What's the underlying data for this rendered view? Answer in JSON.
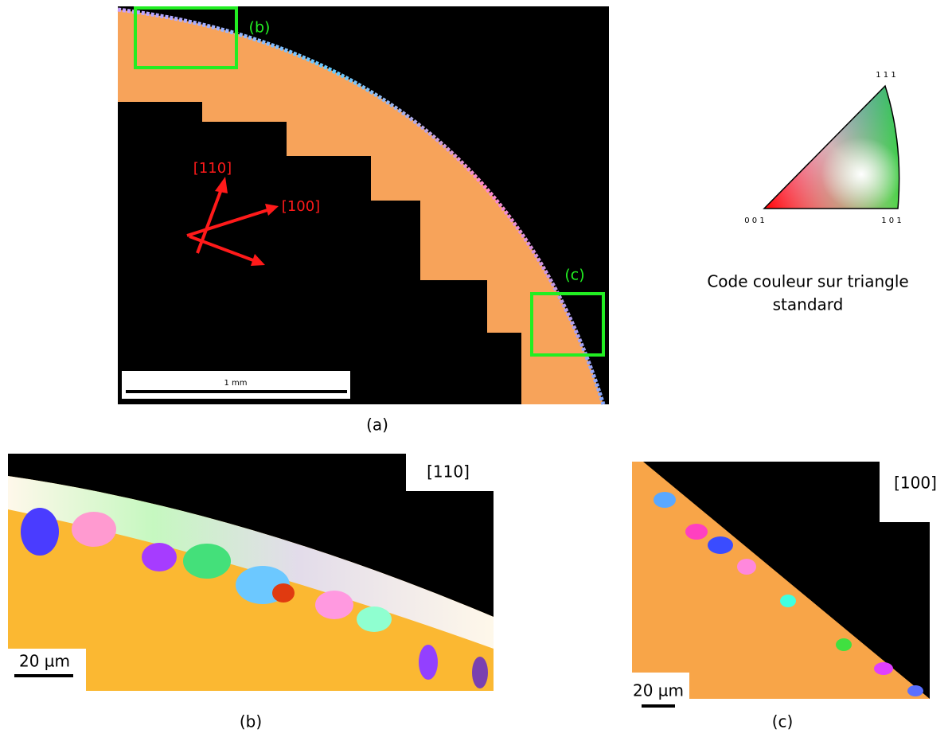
{
  "panel_a": {
    "box_labels": [
      "(b)",
      "(c)"
    ],
    "arrow_labels": [
      "[110]",
      "[100]"
    ],
    "scale_bar": "1 mm",
    "caption": "(a)"
  },
  "legend": {
    "corner_top": "1 1 1",
    "corner_left": "0 0 1",
    "corner_right": "1 0 1",
    "caption_lines": [
      "Code couleur sur triangle",
      "standard"
    ]
  },
  "panel_b": {
    "direction": "[110]",
    "scale_bar": "20 µm",
    "caption": "(b)"
  },
  "panel_c": {
    "direction": "[100]",
    "scale_bar": "20 µm",
    "caption": "(c)"
  }
}
